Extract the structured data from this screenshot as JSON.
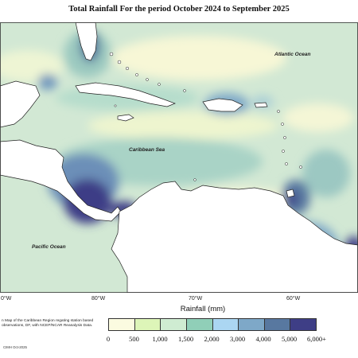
{
  "title": "Total Rainfall For the period October 2024 to September 2025",
  "labels": {
    "atlantic": "Atlantic Ocean",
    "caribbean": "Caribbean Sea",
    "pacific": "Pacific Ocean"
  },
  "longitudes": [
    "80°W",
    "70°W",
    "60°W"
  ],
  "longitudes_edge": "0°W",
  "legend": {
    "title": "Rainfall (mm)",
    "ticks": [
      "0",
      "500",
      "1,000",
      "1,500",
      "2,000",
      "3,000",
      "4,000",
      "5,000",
      "6,000+"
    ],
    "colors": [
      "#fbfbe0",
      "#ddf5b8",
      "#cfecd2",
      "#90cfb8",
      "#abd6f2",
      "#7ea8c8",
      "#5878a0",
      "#3e3e86"
    ]
  },
  "description": "n Map of the Caribbean Region regating station based observations, DF, with NCEP/NCAR Reanalysis Data.",
  "credit": "CIMH Oct-2025"
}
